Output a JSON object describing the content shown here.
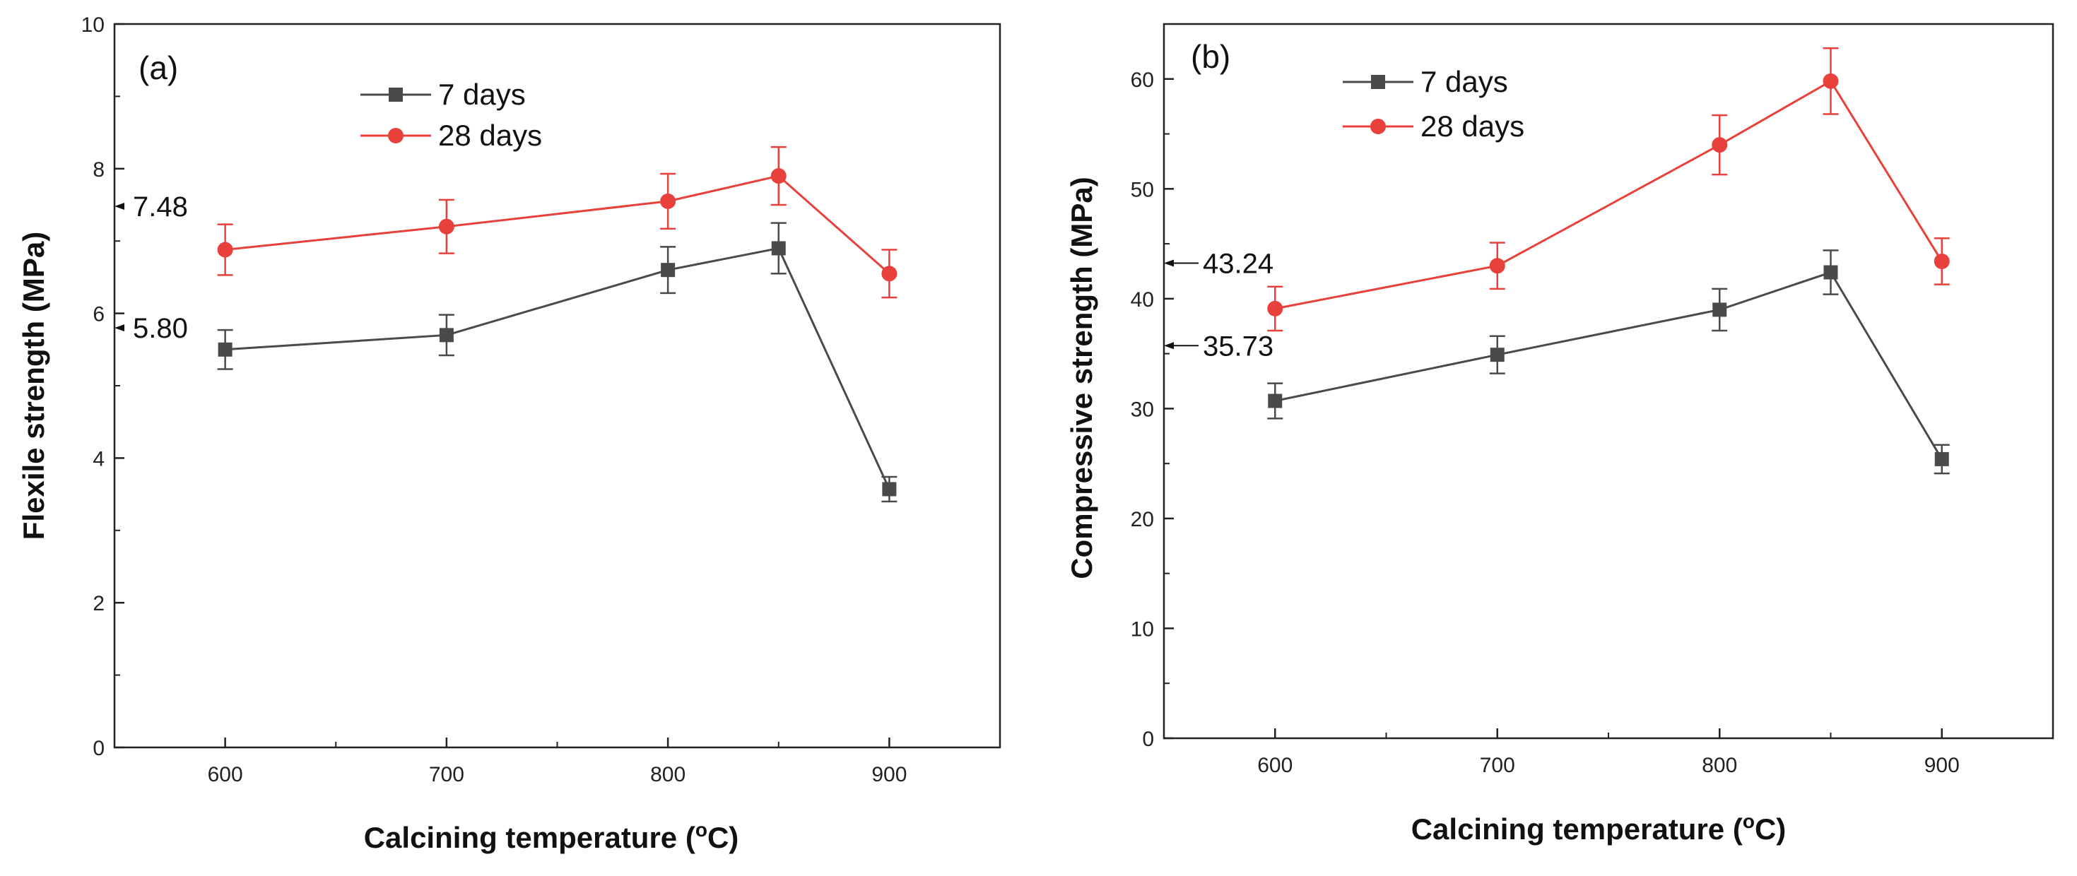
{
  "chart_data": [
    {
      "type": "line",
      "panel_label": "(a)",
      "xlabel": "Calcining temperature (",
      "xlabel_sup": "o",
      "xlabel_end": "C)",
      "ylabel": "Flexile strength (MPa)",
      "x": [
        600,
        700,
        800,
        850,
        900
      ],
      "xticks": [
        "600",
        "700",
        "800",
        "900"
      ],
      "xlim": [
        550,
        950
      ],
      "ylim": [
        0,
        10
      ],
      "yticks": [
        "0",
        "2",
        "4",
        "6",
        "8",
        "10"
      ],
      "series": [
        {
          "name": "7 days",
          "color": "#4a4a4a",
          "marker": "square",
          "values": [
            5.5,
            5.7,
            6.6,
            6.9,
            3.57
          ],
          "errors": [
            0.27,
            0.28,
            0.32,
            0.35,
            0.17
          ]
        },
        {
          "name": "28 days",
          "color": "#e8403a",
          "marker": "circle",
          "values": [
            6.88,
            7.2,
            7.55,
            7.9,
            6.55
          ],
          "errors": [
            0.35,
            0.37,
            0.38,
            0.4,
            0.33
          ]
        }
      ],
      "annotations": [
        {
          "text": "7.48",
          "value": 7.48
        },
        {
          "text": "5.80",
          "value": 5.8
        }
      ]
    },
    {
      "type": "line",
      "panel_label": "(b)",
      "xlabel": "Calcining temperature (",
      "xlabel_sup": "o",
      "xlabel_end": "C)",
      "ylabel": "Compressive strength (MPa)",
      "x": [
        600,
        700,
        800,
        850,
        900
      ],
      "xticks": [
        "600",
        "700",
        "800",
        "900"
      ],
      "xlim": [
        550,
        950
      ],
      "ylim": [
        0,
        65
      ],
      "yticks": [
        "0",
        "10",
        "20",
        "30",
        "40",
        "50",
        "60"
      ],
      "series": [
        {
          "name": "7 days",
          "color": "#4a4a4a",
          "marker": "square",
          "values": [
            30.7,
            34.9,
            39.0,
            42.4,
            25.4
          ],
          "errors": [
            1.6,
            1.7,
            1.9,
            2.0,
            1.3
          ]
        },
        {
          "name": "28 days",
          "color": "#e8403a",
          "marker": "circle",
          "values": [
            39.1,
            43.0,
            54.0,
            59.8,
            43.4
          ],
          "errors": [
            2.0,
            2.1,
            2.7,
            3.0,
            2.1
          ]
        }
      ],
      "annotations": [
        {
          "text": "43.24",
          "value": 43.24
        },
        {
          "text": "35.73",
          "value": 35.73
        }
      ]
    }
  ]
}
